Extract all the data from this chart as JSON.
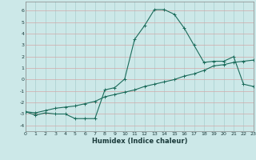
{
  "xlabel": "Humidex (Indice chaleur)",
  "background_color": "#cce8e8",
  "grid_color_pink": "#d4a8a8",
  "grid_color_teal": "#a8cece",
  "line_color": "#1a6b5a",
  "xlim": [
    0,
    23
  ],
  "ylim": [
    -4.5,
    6.8
  ],
  "xticks": [
    0,
    1,
    2,
    3,
    4,
    5,
    6,
    7,
    8,
    9,
    10,
    11,
    12,
    13,
    14,
    15,
    16,
    17,
    18,
    19,
    20,
    21,
    22,
    23
  ],
  "yticks": [
    -4,
    -3,
    -2,
    -1,
    0,
    1,
    2,
    3,
    4,
    5,
    6
  ],
  "line1_x": [
    0,
    1,
    2,
    3,
    4,
    5,
    6,
    7,
    8,
    9,
    10,
    11,
    12,
    13,
    14,
    15,
    16,
    17,
    18,
    19,
    20,
    21,
    22,
    23
  ],
  "line1_y": [
    -2.8,
    -3.1,
    -2.9,
    -3.0,
    -3.0,
    -3.4,
    -3.4,
    -3.4,
    -0.9,
    -0.7,
    0.05,
    3.5,
    4.7,
    6.1,
    6.1,
    5.7,
    4.5,
    3.0,
    1.5,
    1.6,
    1.6,
    2.0,
    -0.4,
    -0.6
  ],
  "line2_x": [
    0,
    1,
    2,
    3,
    4,
    5,
    6,
    7,
    8,
    9,
    10,
    11,
    12,
    13,
    14,
    15,
    16,
    17,
    18,
    19,
    20,
    21,
    22,
    23
  ],
  "line2_y": [
    -2.8,
    -2.9,
    -2.7,
    -2.5,
    -2.4,
    -2.3,
    -2.1,
    -1.9,
    -1.5,
    -1.3,
    -1.1,
    -0.9,
    -0.6,
    -0.4,
    -0.2,
    0.0,
    0.3,
    0.5,
    0.8,
    1.2,
    1.3,
    1.5,
    1.6,
    1.7
  ],
  "xlabel_fontsize": 6,
  "tick_fontsize": 4.5,
  "line_width": 0.8,
  "marker_size": 2.5,
  "marker_ew": 0.7
}
